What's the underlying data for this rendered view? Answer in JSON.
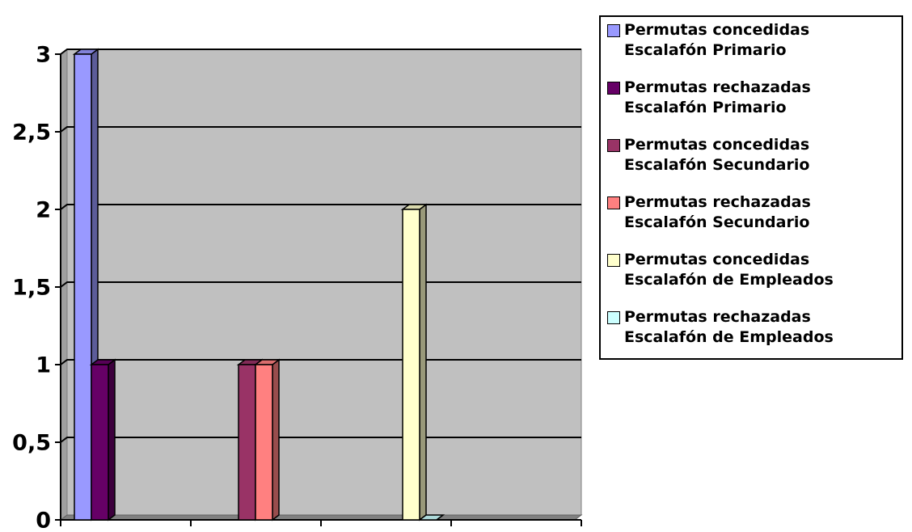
{
  "chart_data": {
    "type": "bar3d",
    "categories": [
      null,
      null,
      null,
      null
    ],
    "series": [
      {
        "name": "Permutas concedidas Escalafón Primario",
        "color": "#9999ff",
        "values": [
          3,
          null,
          null,
          null
        ]
      },
      {
        "name": "Permutas rechazadas Escalafón Primario",
        "color": "#660066",
        "values": [
          1,
          null,
          null,
          null
        ]
      },
      {
        "name": "Permutas concedidas Escalafón Secundario",
        "color": "#993366",
        "values": [
          null,
          1,
          null,
          null
        ]
      },
      {
        "name": "Permutas rechazadas Escalafón Secundario",
        "color": "#ff8080",
        "values": [
          null,
          1,
          null,
          null
        ]
      },
      {
        "name": "Permutas concedidas Escalafón de Empleados",
        "color": "#ffffcc",
        "values": [
          null,
          null,
          2,
          null
        ]
      },
      {
        "name": "Permutas rechazadas Escalafón de Empleados",
        "color": "#ccffff",
        "values": [
          null,
          null,
          0,
          null
        ]
      }
    ],
    "ylim": [
      0,
      3
    ],
    "yticks": [
      0,
      {
        "value": 0.5,
        "label": "0,5"
      },
      1,
      {
        "value": 1.5,
        "label": "1,5"
      },
      2,
      {
        "value": 2.5,
        "label": "2,5"
      },
      3
    ],
    "grid": true,
    "legend": "right"
  }
}
